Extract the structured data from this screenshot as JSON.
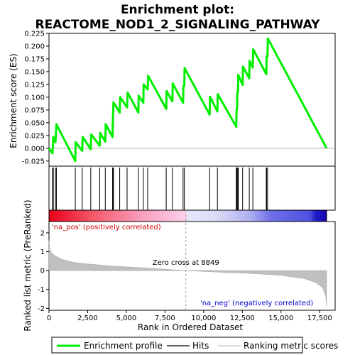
{
  "chart_data": {
    "type": "line",
    "title_line1": "Enrichment plot:",
    "title_line2": "REACTOME_NOD1_2_SIGNALING_PATHWAY",
    "top_panel": {
      "ylabel": "Enrichment score (ES)",
      "ylim": [
        -0.035,
        0.225
      ],
      "yticks": [
        "0.225",
        "0.200",
        "0.175",
        "0.150",
        "0.125",
        "0.100",
        "0.075",
        "0.050",
        "0.025",
        "0.000",
        "-0.025"
      ],
      "ytick_values": [
        0.225,
        0.2,
        0.175,
        0.15,
        0.125,
        0.1,
        0.075,
        0.05,
        0.025,
        0.0,
        -0.025
      ],
      "series_name": "Enrichment profile",
      "color": "#00ee00",
      "profile": [
        [
          0,
          0
        ],
        [
          230,
          -0.01
        ],
        [
          280,
          0.022
        ],
        [
          420,
          0.012
        ],
        [
          480,
          0.047
        ],
        [
          1700,
          -0.025
        ],
        [
          1720,
          0.012
        ],
        [
          2150,
          -0.005
        ],
        [
          2180,
          0.022
        ],
        [
          2700,
          -0.002
        ],
        [
          2730,
          0.027
        ],
        [
          3280,
          0.005
        ],
        [
          3310,
          0.03
        ],
        [
          3640,
          0.013
        ],
        [
          3670,
          0.047
        ],
        [
          4110,
          0.022
        ],
        [
          4130,
          0.056
        ],
        [
          4170,
          0.09
        ],
        [
          4570,
          0.07
        ],
        [
          4600,
          0.1
        ],
        [
          5050,
          0.08
        ],
        [
          5080,
          0.109
        ],
        [
          5780,
          0.07
        ],
        [
          5800,
          0.103
        ],
        [
          6100,
          0.089
        ],
        [
          6120,
          0.125
        ],
        [
          6380,
          0.115
        ],
        [
          6410,
          0.142
        ],
        [
          7580,
          0.077
        ],
        [
          7600,
          0.112
        ],
        [
          7980,
          0.092
        ],
        [
          8000,
          0.127
        ],
        [
          8670,
          0.089
        ],
        [
          8690,
          0.122
        ],
        [
          8750,
          0.122
        ],
        [
          8770,
          0.157
        ],
        [
          10390,
          0.066
        ],
        [
          10410,
          0.101
        ],
        [
          10890,
          0.072
        ],
        [
          10910,
          0.106
        ],
        [
          12110,
          0.042
        ],
        [
          12130,
          0.076
        ],
        [
          12160,
          0.076
        ],
        [
          12180,
          0.11
        ],
        [
          12220,
          0.11
        ],
        [
          12240,
          0.144
        ],
        [
          12520,
          0.124
        ],
        [
          12540,
          0.16
        ],
        [
          12950,
          0.137
        ],
        [
          12970,
          0.171
        ],
        [
          13180,
          0.158
        ],
        [
          13200,
          0.194
        ],
        [
          14050,
          0.145
        ],
        [
          14070,
          0.18
        ],
        [
          14130,
          0.18
        ],
        [
          14150,
          0.215
        ],
        [
          17950,
          0.0
        ]
      ]
    },
    "hits": [
      230,
      280,
      420,
      480,
      1700,
      2150,
      2700,
      3280,
      3640,
      4110,
      4130,
      4170,
      4570,
      5050,
      5780,
      6100,
      6380,
      7580,
      7980,
      8670,
      8750,
      10390,
      10890,
      12110,
      12130,
      12160,
      12180,
      12220,
      12240,
      12520,
      12950,
      13180,
      14050,
      14070,
      14130
    ],
    "bottom_panel": {
      "ylabel": "Ranked list metric (PreRanked)",
      "xlabel": "Rank in Ordered Dataset",
      "ylim": [
        -2.1,
        2.6
      ],
      "yticks": [
        "2",
        "1",
        "0",
        "-1",
        "-2"
      ],
      "ytick_values": [
        2,
        1,
        0,
        -1,
        -2
      ],
      "xticks": [
        "0",
        "2,500",
        "5,000",
        "7,500",
        "10,000",
        "12,500",
        "15,000",
        "17,500"
      ],
      "xtick_values": [
        0,
        2500,
        5000,
        7500,
        10000,
        12500,
        15000,
        17500
      ],
      "xlim": [
        0,
        18500
      ],
      "n_ranks": 17950,
      "zero_cross": 8849,
      "zero_cross_label": "Zero cross at 8849",
      "pos_label": "'na_pos' (positively correlated)",
      "neg_label": "'na_neg' (negatively correlated)",
      "metric_curve": [
        [
          0,
          1.6
        ],
        [
          40,
          1.2
        ],
        [
          150,
          0.95
        ],
        [
          400,
          0.78
        ],
        [
          800,
          0.6
        ],
        [
          1500,
          0.45
        ],
        [
          2500,
          0.35
        ],
        [
          4000,
          0.25
        ],
        [
          6000,
          0.15
        ],
        [
          8849,
          0.0
        ],
        [
          11000,
          -0.08
        ],
        [
          13000,
          -0.15
        ],
        [
          15000,
          -0.25
        ],
        [
          16500,
          -0.42
        ],
        [
          17300,
          -0.65
        ],
        [
          17700,
          -0.9
        ],
        [
          17900,
          -1.4
        ],
        [
          17950,
          -1.9
        ]
      ]
    },
    "legend": {
      "enrichment_profile": "Enrichment profile",
      "hits": "Hits",
      "ranking_metric_scores": "Ranking metric scores"
    }
  }
}
